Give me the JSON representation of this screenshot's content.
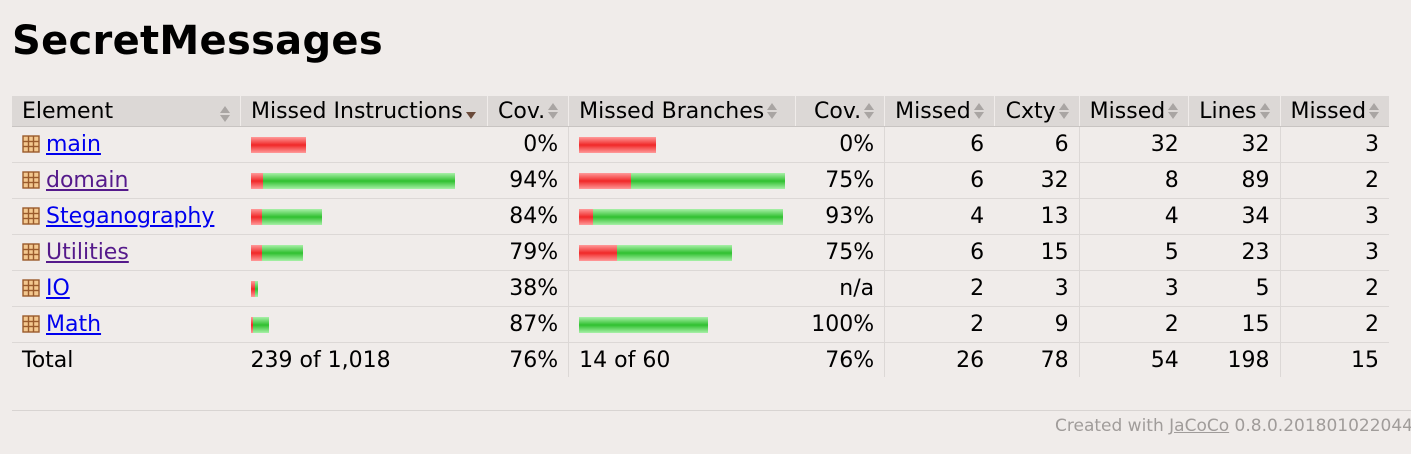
{
  "title": "SecretMessages",
  "columns": {
    "element": "Element",
    "missed_instructions": "Missed Instructions",
    "cov1": "Cov.",
    "missed_branches": "Missed Branches",
    "cov2": "Cov.",
    "missed_cxty": "Missed",
    "cxty": "Cxty",
    "missed_lines": "Missed",
    "lines": "Lines",
    "missed_methods": "Missed"
  },
  "rows": [
    {
      "name": "main",
      "icon": "package-icon",
      "instr_missed_frac": 1.0,
      "instr_bar_total": 55,
      "instr_cov": "0%",
      "branch_missed_frac": 1.0,
      "branch_bar_total": 77,
      "branch_cov": "0%",
      "missed_cxty": "6",
      "cxty": "6",
      "missed_lines": "32",
      "lines": "32",
      "missed_methods": "3"
    },
    {
      "name": "domain",
      "icon": "package-icon",
      "instr_missed_frac": 0.06,
      "instr_bar_total": 204,
      "instr_cov": "94%",
      "branch_missed_frac": 0.25,
      "branch_bar_total": 206,
      "branch_cov": "75%",
      "missed_cxty": "6",
      "cxty": "32",
      "missed_lines": "8",
      "lines": "89",
      "missed_methods": "2"
    },
    {
      "name": "Steganography",
      "icon": "package-icon",
      "instr_missed_frac": 0.16,
      "instr_bar_total": 71,
      "instr_cov": "84%",
      "branch_missed_frac": 0.07,
      "branch_bar_total": 204,
      "branch_cov": "93%",
      "missed_cxty": "4",
      "cxty": "13",
      "missed_lines": "4",
      "lines": "34",
      "missed_methods": "3"
    },
    {
      "name": "Utilities",
      "icon": "package-icon",
      "instr_missed_frac": 0.21,
      "instr_bar_total": 52,
      "instr_cov": "79%",
      "branch_missed_frac": 0.25,
      "branch_bar_total": 153,
      "branch_cov": "75%",
      "missed_cxty": "6",
      "cxty": "15",
      "missed_lines": "5",
      "lines": "23",
      "missed_methods": "3"
    },
    {
      "name": "IO",
      "icon": "package-icon",
      "instr_missed_frac": 0.62,
      "instr_bar_total": 7,
      "instr_cov": "38%",
      "branch_missed_frac": 0,
      "branch_bar_total": 0,
      "branch_cov": "n/a",
      "missed_cxty": "2",
      "cxty": "3",
      "missed_lines": "3",
      "lines": "5",
      "missed_methods": "2"
    },
    {
      "name": "Math",
      "icon": "package-icon",
      "instr_missed_frac": 0.13,
      "instr_bar_total": 18,
      "instr_cov": "87%",
      "branch_missed_frac": 0.0,
      "branch_bar_total": 129,
      "branch_cov": "100%",
      "missed_cxty": "2",
      "cxty": "9",
      "missed_lines": "2",
      "lines": "15",
      "missed_methods": "2"
    }
  ],
  "total": {
    "label": "Total",
    "instr": "239 of 1,018",
    "instr_cov": "76%",
    "branch": "14 of 60",
    "branch_cov": "76%",
    "missed_cxty": "26",
    "cxty": "78",
    "missed_lines": "54",
    "lines": "198",
    "missed_methods": "15"
  },
  "footer": {
    "prefix": "Created with ",
    "link": "JaCoCo",
    "suffix": " 0.8.0.201801022044"
  },
  "colors": {
    "missed": "#f02828",
    "covered": "#30c030",
    "link": "#0000ee",
    "visited": "#551a8b"
  }
}
